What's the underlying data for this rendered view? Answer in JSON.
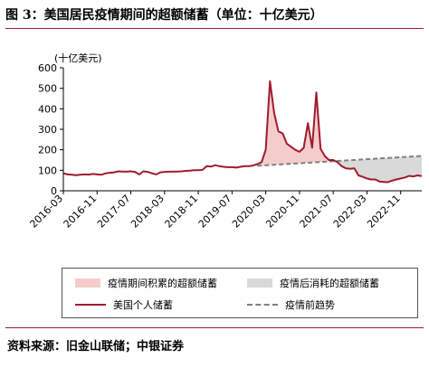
{
  "title": "图 3：美国居民疫情期间的超额储蓄（单位：十亿美元）",
  "source": "资料来源：旧金山联储；中银证券",
  "chart_data": {
    "type": "line",
    "ylabel": "(十亿美元)",
    "ylim": [
      0,
      600
    ],
    "y_ticks": [
      "0",
      "100",
      "200",
      "300",
      "400",
      "500",
      "600"
    ],
    "x_tick_labels": [
      "2016-03",
      "2016-11",
      "2017-07",
      "2018-03",
      "2018-11",
      "2019-07",
      "2020-03",
      "2020-11",
      "2021-07",
      "2022-03",
      "2022-11"
    ],
    "series": [
      {
        "name": "美国个人储蓄",
        "x": [
          "2016-03",
          "2016-04",
          "2016-05",
          "2016-06",
          "2016-07",
          "2016-08",
          "2016-09",
          "2016-10",
          "2016-11",
          "2016-12",
          "2017-01",
          "2017-02",
          "2017-03",
          "2017-04",
          "2017-05",
          "2017-06",
          "2017-07",
          "2017-08",
          "2017-09",
          "2017-10",
          "2017-11",
          "2017-12",
          "2018-01",
          "2018-02",
          "2018-03",
          "2018-04",
          "2018-05",
          "2018-06",
          "2018-07",
          "2018-08",
          "2018-09",
          "2018-10",
          "2018-11",
          "2018-12",
          "2019-01",
          "2019-02",
          "2019-03",
          "2019-04",
          "2019-05",
          "2019-06",
          "2019-07",
          "2019-08",
          "2019-09",
          "2019-10",
          "2019-11",
          "2019-12",
          "2020-01",
          "2020-02",
          "2020-03",
          "2020-04",
          "2020-05",
          "2020-06",
          "2020-07",
          "2020-08",
          "2020-09",
          "2020-10",
          "2020-11",
          "2020-12",
          "2021-01",
          "2021-02",
          "2021-03",
          "2021-04",
          "2021-05",
          "2021-06",
          "2021-07",
          "2021-08",
          "2021-09",
          "2021-10",
          "2021-11",
          "2021-12",
          "2022-01",
          "2022-02",
          "2022-03",
          "2022-04",
          "2022-05",
          "2022-06",
          "2022-07",
          "2022-08",
          "2022-09",
          "2022-10",
          "2022-11",
          "2022-12",
          "2023-01",
          "2023-02",
          "2023-03",
          "2023-04"
        ],
        "values": [
          85,
          80,
          78,
          76,
          78,
          80,
          79,
          82,
          80,
          78,
          85,
          88,
          90,
          95,
          94,
          93,
          95,
          92,
          80,
          95,
          92,
          85,
          80,
          90,
          92,
          93,
          93,
          94,
          95,
          97,
          98,
          100,
          100,
          102,
          120,
          118,
          125,
          120,
          117,
          115,
          115,
          113,
          117,
          120,
          120,
          123,
          130,
          140,
          200,
          535,
          380,
          290,
          280,
          230,
          215,
          200,
          190,
          210,
          330,
          210,
          480,
          205,
          170,
          150,
          150,
          140,
          120,
          110,
          107,
          110,
          75,
          68,
          60,
          55,
          55,
          45,
          43,
          42,
          50,
          55,
          60,
          65,
          73,
          70,
          75,
          72
        ]
      },
      {
        "name": "疫情前趋势",
        "x": [
          "2020-01",
          "2023-04"
        ],
        "values": [
          122,
          170
        ]
      }
    ],
    "areas": [
      {
        "name": "疫情期间积累的超额储蓄",
        "color": "#f4cccc"
      },
      {
        "name": "疫情后消耗的超额储蓄",
        "color": "#d9d9d9"
      }
    ],
    "colors": {
      "line": "#a11a2e",
      "trend": "#7f7f7f",
      "accumulated": "#f4cccc",
      "depleted": "#d9d9d9",
      "rule": "#a11a2e"
    },
    "grid": false
  }
}
